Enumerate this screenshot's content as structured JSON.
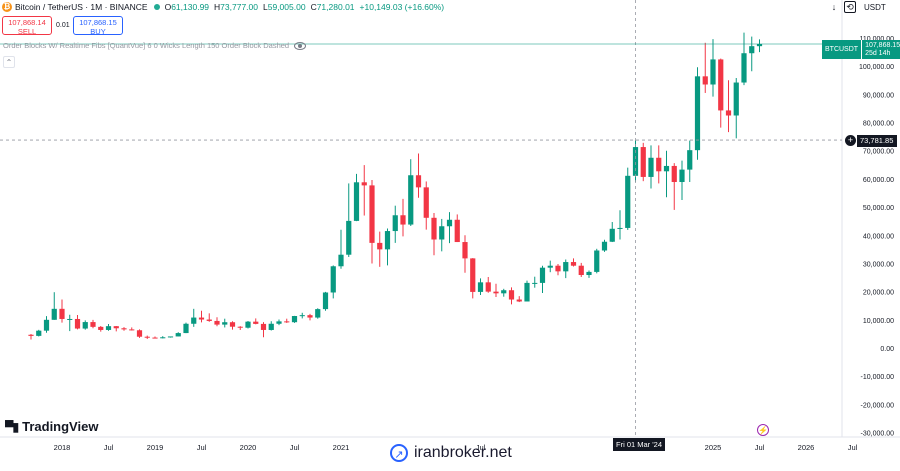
{
  "header": {
    "symbol": "Bitcoin / TetherUS · 1M · BINANCE",
    "ohlc": [
      {
        "k": "O",
        "v": "61,130.99"
      },
      {
        "k": "H",
        "v": "73,777.00"
      },
      {
        "k": "L",
        "v": "59,005.00"
      },
      {
        "k": "C",
        "v": "71,280.01"
      }
    ],
    "change": "+10,149.03 (+16.60%)",
    "currency": "USDT",
    "icons": [
      "down-arrow-icon",
      "replay-icon"
    ]
  },
  "trade": {
    "sell_price": "107,868.14",
    "sell_label": "SELL",
    "spread": "0.01",
    "buy_price": "107,868.15",
    "buy_label": "BUY"
  },
  "indicator": {
    "label": "Order Blocks W/ Realtime Fibs [QuantVue] 6 0 Wicks Length 150 Order Block Dashed"
  },
  "price_label": {
    "symbol": "BTCUSDT",
    "price": "107,868.15",
    "countdown": "25d 14h"
  },
  "crosshair": {
    "price": "73,781.85",
    "date": "Fri 01 Mar '24"
  },
  "branding": {
    "logo": "TradingView",
    "watermark": "iranbroker.net"
  },
  "colors": {
    "up": "#089981",
    "down": "#f23645",
    "price_line": "#089981"
  },
  "chart_data": {
    "type": "candlestick",
    "interval": "1M",
    "ylim": [
      -30000,
      115000
    ],
    "y_ticks": [
      -30000,
      -20000,
      -10000,
      0,
      10000,
      20000,
      30000,
      40000,
      50000,
      60000,
      70000,
      80000,
      90000,
      100000,
      110000
    ],
    "y_tick_labels": [
      "-30,000.00",
      "-20,000.00",
      "-10,000.00",
      "0.00",
      "10,000.00",
      "20,000.00",
      "30,000.00",
      "40,000.00",
      "50,000.00",
      "60,000.00",
      "70,000.00",
      "80,000.00",
      "90,000.00",
      "100,000.00",
      "110,000.00"
    ],
    "x_ticks": [
      {
        "label": "2018",
        "month": "2018-01"
      },
      {
        "label": "Jul",
        "month": "2018-07"
      },
      {
        "label": "2019",
        "month": "2019-01"
      },
      {
        "label": "Jul",
        "month": "2019-07"
      },
      {
        "label": "2020",
        "month": "2020-01"
      },
      {
        "label": "Jul",
        "month": "2020-07"
      },
      {
        "label": "2021",
        "month": "2021-01"
      },
      {
        "label": "Jul",
        "month": "2022-07"
      },
      {
        "label": "2025",
        "month": "2025-01"
      },
      {
        "label": "Jul",
        "month": "2025-07"
      },
      {
        "label": "2026",
        "month": "2026-01"
      },
      {
        "label": "Jul",
        "month": "2026-07"
      }
    ],
    "crosshair_month": "2024-03",
    "crosshair_price": 73781.85,
    "current_price": 107868.15,
    "candles": [
      {
        "t": "2017-09",
        "o": 4700,
        "h": 4950,
        "l": 3000,
        "c": 4300
      },
      {
        "t": "2017-10",
        "o": 4300,
        "h": 6450,
        "l": 4100,
        "c": 6150
      },
      {
        "t": "2017-11",
        "o": 6150,
        "h": 11300,
        "l": 5400,
        "c": 10000
      },
      {
        "t": "2017-12",
        "o": 10000,
        "h": 19800,
        "l": 10000,
        "c": 13900
      },
      {
        "t": "2018-01",
        "o": 13900,
        "h": 17200,
        "l": 9000,
        "c": 10300
      },
      {
        "t": "2018-02",
        "o": 10300,
        "h": 11800,
        "l": 6000,
        "c": 10300
      },
      {
        "t": "2018-03",
        "o": 10300,
        "h": 11700,
        "l": 6600,
        "c": 6900
      },
      {
        "t": "2018-04",
        "o": 6900,
        "h": 9800,
        "l": 6500,
        "c": 9200
      },
      {
        "t": "2018-05",
        "o": 9200,
        "h": 10000,
        "l": 7000,
        "c": 7500
      },
      {
        "t": "2018-06",
        "o": 7500,
        "h": 7800,
        "l": 5800,
        "c": 6400
      },
      {
        "t": "2018-07",
        "o": 6400,
        "h": 8500,
        "l": 6100,
        "c": 7750
      },
      {
        "t": "2018-08",
        "o": 7750,
        "h": 7800,
        "l": 5900,
        "c": 7000
      },
      {
        "t": "2018-09",
        "o": 7000,
        "h": 7400,
        "l": 6100,
        "c": 6600
      },
      {
        "t": "2018-10",
        "o": 6600,
        "h": 7300,
        "l": 6200,
        "c": 6300
      },
      {
        "t": "2018-11",
        "o": 6300,
        "h": 6600,
        "l": 3600,
        "c": 4000
      },
      {
        "t": "2018-12",
        "o": 4000,
        "h": 4400,
        "l": 3200,
        "c": 3700
      },
      {
        "t": "2019-01",
        "o": 3700,
        "h": 4100,
        "l": 3400,
        "c": 3450
      },
      {
        "t": "2019-02",
        "o": 3450,
        "h": 4200,
        "l": 3400,
        "c": 3800
      },
      {
        "t": "2019-03",
        "o": 3800,
        "h": 4100,
        "l": 3700,
        "c": 4100
      },
      {
        "t": "2019-04",
        "o": 4100,
        "h": 5600,
        "l": 4100,
        "c": 5300
      },
      {
        "t": "2019-05",
        "o": 5300,
        "h": 9000,
        "l": 5300,
        "c": 8600
      },
      {
        "t": "2019-06",
        "o": 8600,
        "h": 13900,
        "l": 7500,
        "c": 10800
      },
      {
        "t": "2019-07",
        "o": 10800,
        "h": 13200,
        "l": 9100,
        "c": 10100
      },
      {
        "t": "2019-08",
        "o": 10100,
        "h": 12300,
        "l": 9300,
        "c": 9600
      },
      {
        "t": "2019-09",
        "o": 9600,
        "h": 10900,
        "l": 7700,
        "c": 8300
      },
      {
        "t": "2019-10",
        "o": 8300,
        "h": 10400,
        "l": 7300,
        "c": 9150
      },
      {
        "t": "2019-11",
        "o": 9150,
        "h": 9500,
        "l": 6500,
        "c": 7550
      },
      {
        "t": "2019-12",
        "o": 7550,
        "h": 7750,
        "l": 6400,
        "c": 7200
      },
      {
        "t": "2020-01",
        "o": 7200,
        "h": 9600,
        "l": 6900,
        "c": 9350
      },
      {
        "t": "2020-02",
        "o": 9350,
        "h": 10500,
        "l": 8400,
        "c": 8550
      },
      {
        "t": "2020-03",
        "o": 8550,
        "h": 9200,
        "l": 3800,
        "c": 6400
      },
      {
        "t": "2020-04",
        "o": 6400,
        "h": 9500,
        "l": 6200,
        "c": 8600
      },
      {
        "t": "2020-05",
        "o": 8600,
        "h": 10100,
        "l": 8100,
        "c": 9450
      },
      {
        "t": "2020-06",
        "o": 9450,
        "h": 10400,
        "l": 8900,
        "c": 9150
      },
      {
        "t": "2020-07",
        "o": 9150,
        "h": 11400,
        "l": 8900,
        "c": 11350
      },
      {
        "t": "2020-08",
        "o": 11350,
        "h": 12500,
        "l": 10500,
        "c": 11650
      },
      {
        "t": "2020-09",
        "o": 11650,
        "h": 12100,
        "l": 9800,
        "c": 10800
      },
      {
        "t": "2020-10",
        "o": 10800,
        "h": 14100,
        "l": 10400,
        "c": 13800
      },
      {
        "t": "2020-11",
        "o": 13800,
        "h": 19900,
        "l": 13200,
        "c": 19700
      },
      {
        "t": "2020-12",
        "o": 19700,
        "h": 29300,
        "l": 17600,
        "c": 29000
      },
      {
        "t": "2021-01",
        "o": 29000,
        "h": 41950,
        "l": 28100,
        "c": 33100
      },
      {
        "t": "2021-02",
        "o": 33100,
        "h": 58400,
        "l": 32300,
        "c": 45100
      },
      {
        "t": "2021-03",
        "o": 45100,
        "h": 61800,
        "l": 45000,
        "c": 58800
      },
      {
        "t": "2021-04",
        "o": 58800,
        "h": 64900,
        "l": 47000,
        "c": 57700
      },
      {
        "t": "2021-05",
        "o": 57700,
        "h": 59600,
        "l": 30000,
        "c": 37300
      },
      {
        "t": "2021-06",
        "o": 37300,
        "h": 41300,
        "l": 28800,
        "c": 35000
      },
      {
        "t": "2021-07",
        "o": 35000,
        "h": 42400,
        "l": 29300,
        "c": 41500
      },
      {
        "t": "2021-08",
        "o": 41500,
        "h": 50500,
        "l": 37300,
        "c": 47100
      },
      {
        "t": "2021-09",
        "o": 47100,
        "h": 52900,
        "l": 39600,
        "c": 43800
      },
      {
        "t": "2021-10",
        "o": 43800,
        "h": 67000,
        "l": 43300,
        "c": 61300
      },
      {
        "t": "2021-11",
        "o": 61300,
        "h": 69000,
        "l": 53300,
        "c": 57000
      },
      {
        "t": "2021-12",
        "o": 57000,
        "h": 59100,
        "l": 42000,
        "c": 46200
      },
      {
        "t": "2022-01",
        "o": 46200,
        "h": 47900,
        "l": 32900,
        "c": 38500
      },
      {
        "t": "2022-02",
        "o": 38500,
        "h": 45800,
        "l": 34300,
        "c": 43200
      },
      {
        "t": "2022-03",
        "o": 43200,
        "h": 48200,
        "l": 37200,
        "c": 45500
      },
      {
        "t": "2022-04",
        "o": 45500,
        "h": 47400,
        "l": 37600,
        "c": 37600
      },
      {
        "t": "2022-05",
        "o": 37600,
        "h": 40000,
        "l": 26700,
        "c": 31800
      },
      {
        "t": "2022-06",
        "o": 31800,
        "h": 31900,
        "l": 17600,
        "c": 19900
      },
      {
        "t": "2022-07",
        "o": 19900,
        "h": 24700,
        "l": 18800,
        "c": 23300
      },
      {
        "t": "2022-08",
        "o": 23300,
        "h": 25200,
        "l": 19600,
        "c": 20000
      },
      {
        "t": "2022-09",
        "o": 20000,
        "h": 22800,
        "l": 18100,
        "c": 19400
      },
      {
        "t": "2022-10",
        "o": 19400,
        "h": 21000,
        "l": 18200,
        "c": 20500
      },
      {
        "t": "2022-11",
        "o": 20500,
        "h": 21500,
        "l": 15500,
        "c": 17200
      },
      {
        "t": "2022-12",
        "o": 17200,
        "h": 18400,
        "l": 16300,
        "c": 16500
      },
      {
        "t": "2023-01",
        "o": 16500,
        "h": 23900,
        "l": 16500,
        "c": 23100
      },
      {
        "t": "2023-02",
        "o": 23100,
        "h": 25300,
        "l": 21400,
        "c": 23100
      },
      {
        "t": "2023-03",
        "o": 23100,
        "h": 29200,
        "l": 19500,
        "c": 28500
      },
      {
        "t": "2023-04",
        "o": 28500,
        "h": 31000,
        "l": 26900,
        "c": 29200
      },
      {
        "t": "2023-05",
        "o": 29200,
        "h": 29800,
        "l": 25800,
        "c": 27200
      },
      {
        "t": "2023-06",
        "o": 27200,
        "h": 31400,
        "l": 24800,
        "c": 30500
      },
      {
        "t": "2023-07",
        "o": 30500,
        "h": 31800,
        "l": 28900,
        "c": 29200
      },
      {
        "t": "2023-08",
        "o": 29200,
        "h": 30200,
        "l": 25200,
        "c": 25900
      },
      {
        "t": "2023-09",
        "o": 25900,
        "h": 27500,
        "l": 24900,
        "c": 27000
      },
      {
        "t": "2023-10",
        "o": 27000,
        "h": 35200,
        "l": 26500,
        "c": 34600
      },
      {
        "t": "2023-11",
        "o": 34600,
        "h": 38400,
        "l": 34100,
        "c": 37700
      },
      {
        "t": "2023-12",
        "o": 37700,
        "h": 44700,
        "l": 37600,
        "c": 42300
      },
      {
        "t": "2024-01",
        "o": 42300,
        "h": 48900,
        "l": 38500,
        "c": 42600
      },
      {
        "t": "2024-02",
        "o": 42600,
        "h": 64000,
        "l": 41900,
        "c": 61100
      },
      {
        "t": "2024-03",
        "o": 61100,
        "h": 73800,
        "l": 59000,
        "c": 71300
      },
      {
        "t": "2024-04",
        "o": 71300,
        "h": 72800,
        "l": 59200,
        "c": 60700
      },
      {
        "t": "2024-05",
        "o": 60700,
        "h": 71900,
        "l": 56600,
        "c": 67500
      },
      {
        "t": "2024-06",
        "o": 67500,
        "h": 71900,
        "l": 58400,
        "c": 62700
      },
      {
        "t": "2024-07",
        "o": 62700,
        "h": 70000,
        "l": 53500,
        "c": 64600
      },
      {
        "t": "2024-08",
        "o": 64600,
        "h": 65600,
        "l": 49000,
        "c": 58900
      },
      {
        "t": "2024-09",
        "o": 58900,
        "h": 66500,
        "l": 52500,
        "c": 63300
      },
      {
        "t": "2024-10",
        "o": 63300,
        "h": 73600,
        "l": 58900,
        "c": 70200
      },
      {
        "t": "2024-11",
        "o": 70200,
        "h": 99600,
        "l": 66800,
        "c": 96400
      },
      {
        "t": "2024-12",
        "o": 96400,
        "h": 108300,
        "l": 90500,
        "c": 93500
      },
      {
        "t": "2025-01",
        "o": 93500,
        "h": 109600,
        "l": 89200,
        "c": 102400
      },
      {
        "t": "2025-02",
        "o": 102400,
        "h": 102700,
        "l": 78200,
        "c": 84300
      },
      {
        "t": "2025-03",
        "o": 84300,
        "h": 95000,
        "l": 76600,
        "c": 82500
      },
      {
        "t": "2025-04",
        "o": 82500,
        "h": 95800,
        "l": 74400,
        "c": 94200
      },
      {
        "t": "2025-05",
        "o": 94200,
        "h": 111900,
        "l": 93300,
        "c": 104600
      },
      {
        "t": "2025-06",
        "o": 104600,
        "h": 110500,
        "l": 98200,
        "c": 107100
      },
      {
        "t": "2025-07",
        "o": 107100,
        "h": 109500,
        "l": 105000,
        "c": 107868
      }
    ]
  }
}
